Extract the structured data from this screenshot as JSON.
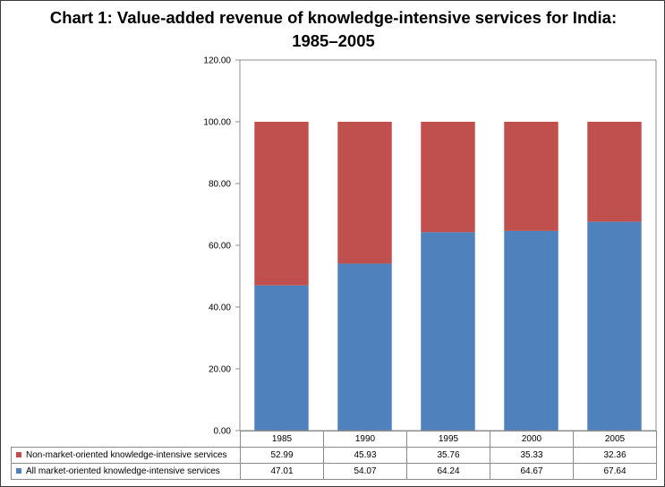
{
  "chart_data": {
    "type": "bar",
    "stacked": true,
    "title_line1": "Chart 1: Value-added revenue of knowledge-intensive services for India:",
    "title_line2": "1985–2005",
    "categories": [
      "1985",
      "1990",
      "1995",
      "2000",
      "2005"
    ],
    "series": [
      {
        "name": "All market-oriented knowledge-intensive services",
        "color": "#4f81bd",
        "values": [
          47.01,
          54.07,
          64.24,
          64.67,
          67.64
        ],
        "labels": [
          "47.01",
          "54.07",
          "64.24",
          "64.67",
          "67.64"
        ]
      },
      {
        "name": "Non-market-oriented knowledge-intensive services",
        "color": "#c0504d",
        "values": [
          52.99,
          45.93,
          35.76,
          35.33,
          32.36
        ],
        "labels": [
          "52.99",
          "45.93",
          "35.76",
          "35.33",
          "32.36"
        ]
      }
    ],
    "ylim": [
      0,
      120
    ],
    "yticks": [
      "0.00",
      "20.00",
      "40.00",
      "60.00",
      "80.00",
      "100.00",
      "120.00"
    ],
    "grid": false,
    "legend": "data-table-below"
  }
}
